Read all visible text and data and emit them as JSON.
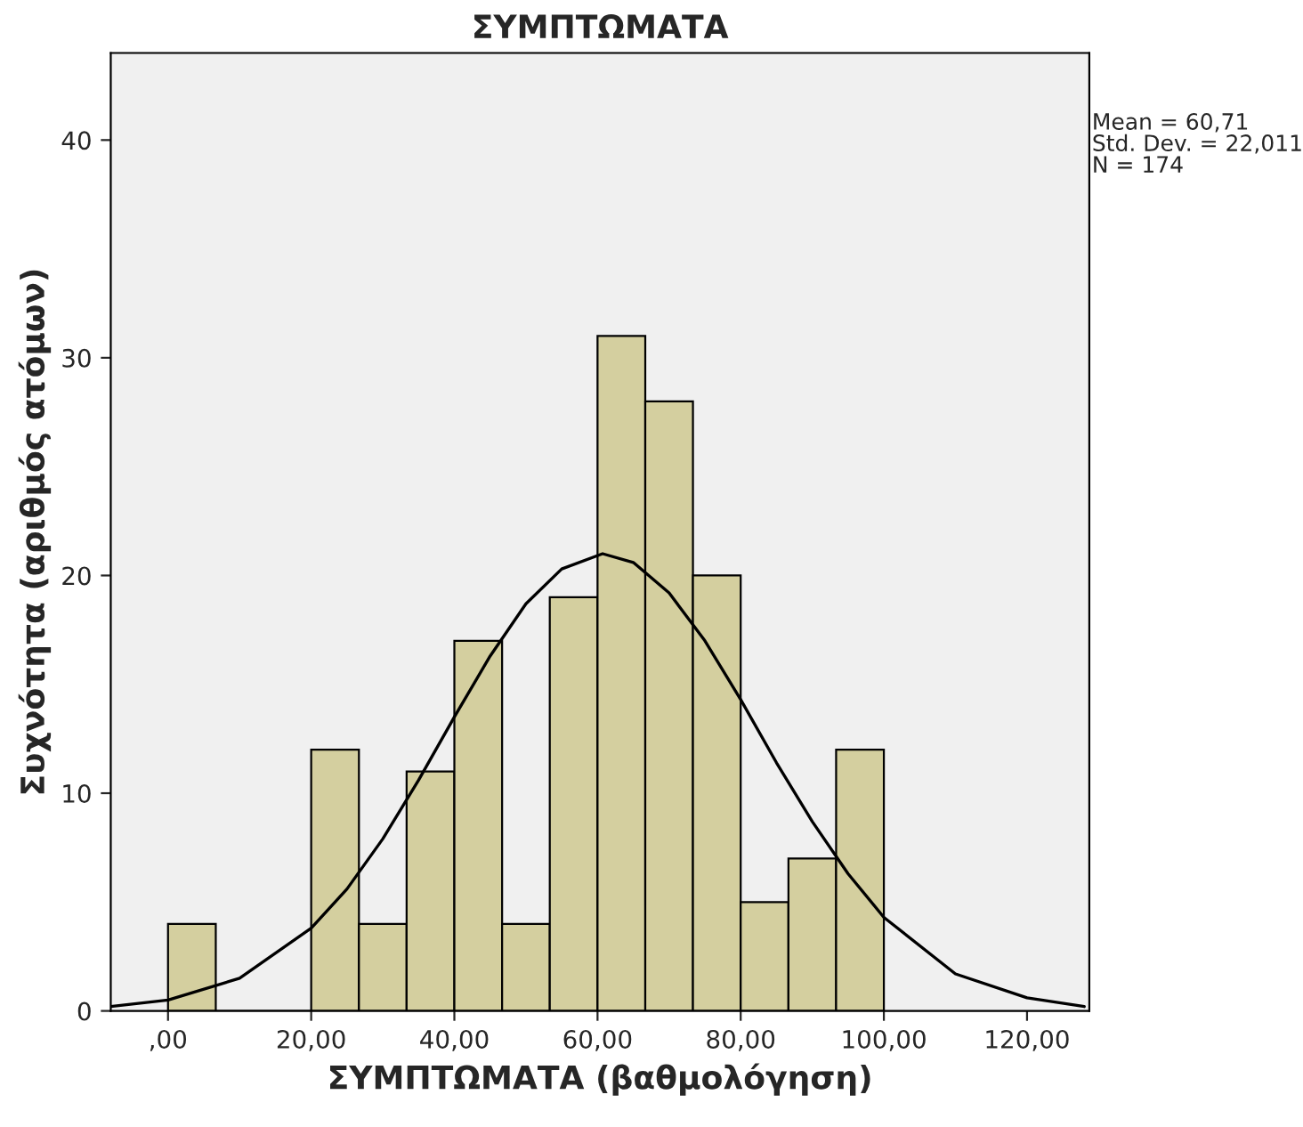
{
  "chart_data": {
    "type": "histogram",
    "title": "ΣΥΜΠΤΩΜΑΤΑ",
    "xlabel": "ΣΥΜΠΤΩΜΑΤΑ (βαθμολόγηση)",
    "ylabel": "Συχνότητα (αριθμός ατόμων)",
    "series": [
      {
        "color": "#d4cf9f",
        "bins": [
          0,
          6.67,
          13.33,
          20,
          26.67,
          33.33,
          40,
          46.67,
          53.33,
          60,
          66.67,
          73.33,
          80,
          86.67,
          93.33,
          100
        ],
        "values": [
          4,
          0,
          0,
          12,
          4,
          11,
          17,
          4,
          19,
          31,
          28,
          20,
          5,
          7,
          12
        ]
      },
      {
        "type": "line",
        "color": "#000000",
        "x": [
          -8,
          0,
          10,
          20,
          25,
          30,
          35,
          40,
          45,
          50,
          55,
          60.71,
          65,
          70,
          75,
          80,
          85,
          90,
          95,
          100,
          110,
          120,
          128
        ],
        "values": [
          0.2,
          0.5,
          1.5,
          3.8,
          5.6,
          7.9,
          10.6,
          13.5,
          16.3,
          18.7,
          20.3,
          21.0,
          20.6,
          19.2,
          17.0,
          14.3,
          11.4,
          8.7,
          6.3,
          4.3,
          1.7,
          0.6,
          0.2
        ]
      }
    ],
    "xlim": [
      -8,
      128.7
    ],
    "ylim": [
      0,
      44
    ],
    "xticks": [
      {
        "value": 0,
        "label": ",00"
      },
      {
        "value": 20,
        "label": "20,00"
      },
      {
        "value": 40,
        "label": "40,00"
      },
      {
        "value": 60,
        "label": "60,00"
      },
      {
        "value": 80,
        "label": "80,00"
      },
      {
        "value": 100,
        "label": "100,00"
      },
      {
        "value": 120,
        "label": "120,00"
      }
    ],
    "yticks": [
      0,
      10,
      20,
      30,
      40
    ],
    "grid": false,
    "legend": false,
    "annotations": [
      "Mean = 60,71",
      "Std. Dev. = 22,011",
      "N = 174"
    ]
  }
}
